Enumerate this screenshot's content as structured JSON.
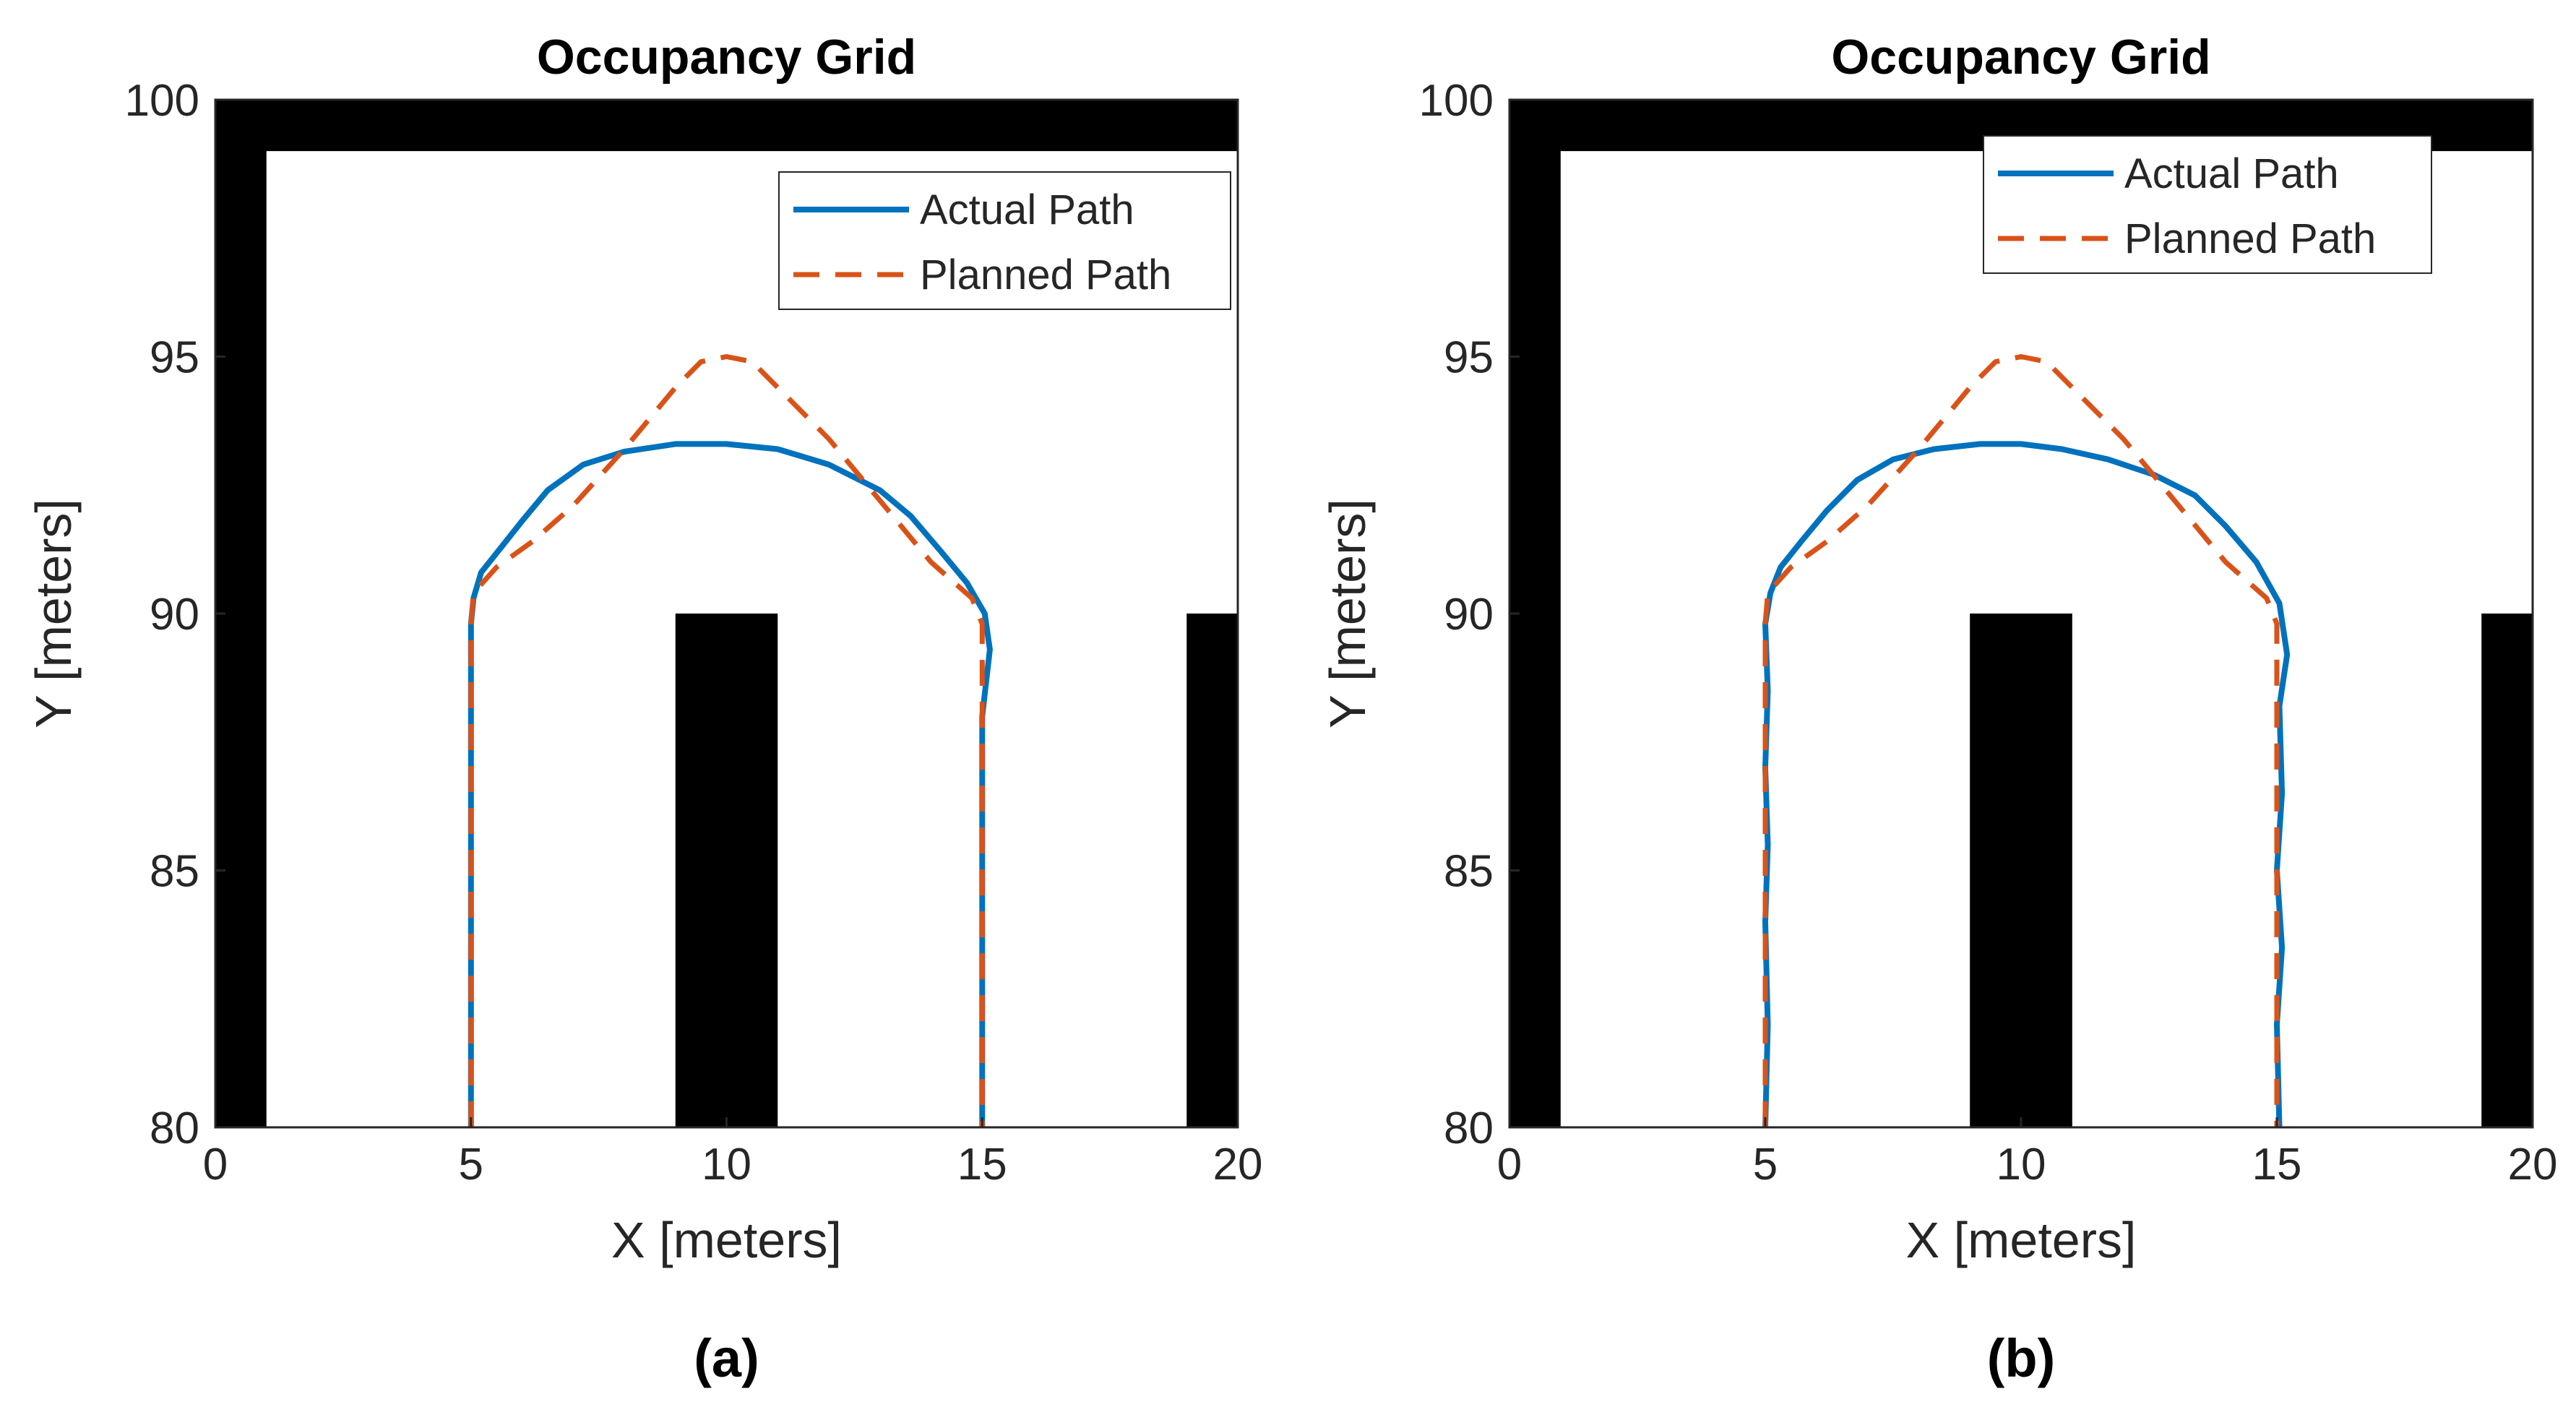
{
  "figure": {
    "panels_count": 2
  },
  "chart_data": [
    {
      "type": "line",
      "panel": "a",
      "caption": "(a)",
      "title": "Occupancy Grid",
      "xlabel": "X [meters]",
      "ylabel": "Y [meters]",
      "xlim": [
        0,
        20
      ],
      "ylim": [
        80,
        100
      ],
      "xticks": [
        0,
        5,
        10,
        15,
        20
      ],
      "yticks": [
        80,
        85,
        90,
        95,
        100
      ],
      "grid": false,
      "legend_position": "top-right",
      "obstacles": [
        {
          "name": "top-wall",
          "x0": 0,
          "x1": 20,
          "y0": 99,
          "y1": 100
        },
        {
          "name": "left-wall",
          "x0": 0,
          "x1": 1,
          "y0": 80,
          "y1": 100
        },
        {
          "name": "center-block",
          "x0": 9,
          "x1": 11,
          "y0": 80,
          "y1": 90
        },
        {
          "name": "right-block",
          "x0": 19,
          "x1": 20,
          "y0": 80,
          "y1": 90
        }
      ],
      "series": [
        {
          "name": "Actual Path",
          "color": "#0072BD",
          "style": "solid",
          "x": [
            5,
            5,
            5,
            5.05,
            5.2,
            5.6,
            6.0,
            6.5,
            7.2,
            8.0,
            9.0,
            10.0,
            11.0,
            12.0,
            13.0,
            13.6,
            14.2,
            14.7,
            15.05,
            15.15,
            15.0,
            15.0,
            15.0
          ],
          "y": [
            80,
            85,
            89.8,
            90.3,
            90.8,
            91.3,
            91.8,
            92.4,
            92.9,
            93.15,
            93.3,
            93.3,
            93.2,
            92.9,
            92.4,
            91.9,
            91.2,
            90.6,
            90.0,
            89.3,
            88.0,
            85,
            80
          ]
        },
        {
          "name": "Planned Path",
          "color": "#D95319",
          "style": "dashed",
          "x": [
            5,
            5,
            5,
            5.05,
            5.5,
            6.2,
            7.0,
            8.0,
            9.0,
            9.5,
            10.0,
            10.5,
            11.0,
            12.0,
            13.0,
            14.0,
            14.8,
            15.0,
            15.0,
            15.0
          ],
          "y": [
            80,
            85,
            89.8,
            90.4,
            90.9,
            91.4,
            92.1,
            93.2,
            94.4,
            94.9,
            95.0,
            94.9,
            94.4,
            93.4,
            92.2,
            91.0,
            90.3,
            89.8,
            85,
            80
          ]
        }
      ]
    },
    {
      "type": "line",
      "panel": "b",
      "caption": "(b)",
      "title": "Occupancy Grid",
      "xlabel": "X [meters]",
      "ylabel": "Y [meters]",
      "xlim": [
        0,
        20
      ],
      "ylim": [
        80,
        100
      ],
      "xticks": [
        0,
        5,
        10,
        15,
        20
      ],
      "yticks": [
        80,
        85,
        90,
        95,
        100
      ],
      "grid": false,
      "legend_position": "top-right",
      "obstacles": [
        {
          "name": "top-wall",
          "x0": 0,
          "x1": 20,
          "y0": 99,
          "y1": 100
        },
        {
          "name": "left-wall",
          "x0": 0,
          "x1": 1,
          "y0": 80,
          "y1": 100
        },
        {
          "name": "center-block",
          "x0": 9,
          "x1": 11,
          "y0": 80,
          "y1": 90
        },
        {
          "name": "right-block",
          "x0": 19,
          "x1": 20,
          "y0": 80,
          "y1": 90
        }
      ],
      "series": [
        {
          "name": "Actual Path",
          "color": "#0072BD",
          "style": "solid",
          "x": [
            5.0,
            5.05,
            5.0,
            5.05,
            5.0,
            5.05,
            5.0,
            5.1,
            5.3,
            5.7,
            6.2,
            6.8,
            7.5,
            8.3,
            9.2,
            10.0,
            10.8,
            11.7,
            12.6,
            13.4,
            14.0,
            14.6,
            15.05,
            15.2,
            15.05,
            15.1,
            15.0,
            15.1,
            15.0,
            15.05
          ],
          "y": [
            80,
            82,
            84,
            85.5,
            87,
            88.5,
            89.8,
            90.4,
            90.9,
            91.4,
            92.0,
            92.6,
            93.0,
            93.2,
            93.3,
            93.3,
            93.2,
            93.0,
            92.7,
            92.3,
            91.7,
            91.0,
            90.2,
            89.2,
            88.2,
            86.5,
            85,
            83.5,
            82,
            80
          ]
        },
        {
          "name": "Planned Path",
          "color": "#D95319",
          "style": "dashed",
          "x": [
            5,
            5,
            5,
            5.05,
            5.5,
            6.2,
            7.0,
            8.0,
            9.0,
            9.5,
            10.0,
            10.5,
            11.0,
            12.0,
            13.0,
            14.0,
            14.8,
            15.0,
            15.0,
            15.0
          ],
          "y": [
            80,
            85,
            89.8,
            90.4,
            90.9,
            91.4,
            92.1,
            93.2,
            94.4,
            94.9,
            95.0,
            94.9,
            94.4,
            93.4,
            92.2,
            91.0,
            90.3,
            89.8,
            85,
            80
          ]
        }
      ]
    }
  ]
}
